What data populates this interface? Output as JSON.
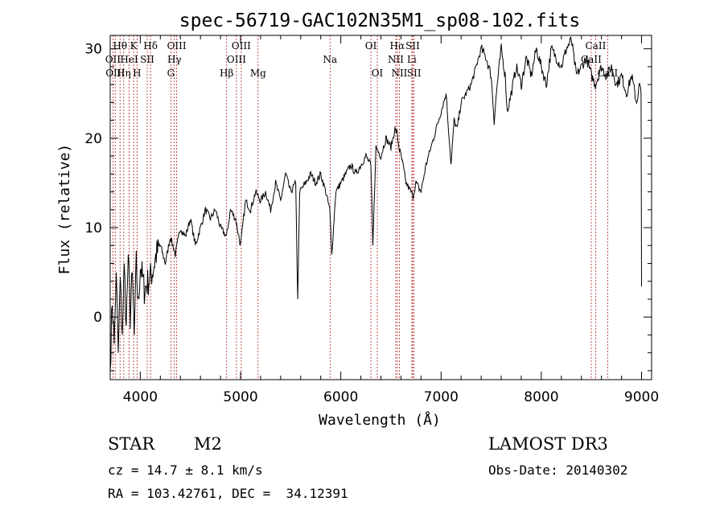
{
  "chart_data": {
    "type": "line",
    "title": "spec-56719-GAC102N35M1_sp08-102.fits",
    "xlabel": "Wavelength (Å)",
    "ylabel": "Flux (relative)",
    "xlim": [
      3700,
      9100
    ],
    "ylim": [
      -7,
      31.5
    ],
    "xticks": [
      4000,
      5000,
      6000,
      7000,
      8000,
      9000
    ],
    "yticks": [
      0,
      10,
      20,
      30
    ],
    "series": [
      {
        "name": "spectrum",
        "x": [
          3700,
          3720,
          3740,
          3760,
          3780,
          3800,
          3820,
          3840,
          3860,
          3880,
          3900,
          3920,
          3940,
          3960,
          3980,
          4000,
          4040,
          4080,
          4120,
          4160,
          4200,
          4250,
          4300,
          4350,
          4400,
          4450,
          4500,
          4550,
          4600,
          4650,
          4700,
          4750,
          4800,
          4860,
          4900,
          4950,
          5000,
          5050,
          5100,
          5150,
          5200,
          5250,
          5300,
          5350,
          5400,
          5450,
          5500,
          5550,
          5570,
          5590,
          5650,
          5700,
          5750,
          5800,
          5850,
          5890,
          5910,
          5950,
          6000,
          6050,
          6100,
          6150,
          6200,
          6250,
          6300,
          6320,
          6350,
          6400,
          6450,
          6500,
          6540,
          6563,
          6580,
          6620,
          6650,
          6700,
          6720,
          6750,
          6800,
          6850,
          6900,
          6950,
          7000,
          7050,
          7100,
          7130,
          7160,
          7200,
          7250,
          7300,
          7350,
          7400,
          7450,
          7500,
          7530,
          7560,
          7600,
          7640,
          7660,
          7700,
          7750,
          7800,
          7850,
          7900,
          7950,
          8000,
          8050,
          8100,
          8150,
          8200,
          8250,
          8300,
          8350,
          8400,
          8450,
          8500,
          8540,
          8600,
          8650,
          8700,
          8750,
          8800,
          8850,
          8900,
          8950,
          8980,
          8995,
          9000
        ],
        "y": [
          -6,
          2,
          -3,
          5,
          -4,
          4,
          -2,
          6,
          -1,
          7,
          0,
          5,
          -2,
          6,
          1,
          6,
          3,
          4,
          5,
          7,
          8,
          6,
          9,
          7,
          10,
          9,
          11,
          8,
          10,
          12,
          11,
          12,
          10,
          9,
          12,
          11,
          8,
          13,
          12,
          14,
          13,
          14,
          12,
          15,
          13,
          16,
          14,
          15,
          2,
          14,
          15,
          16,
          15,
          16,
          14,
          12,
          7,
          14,
          15,
          16,
          17,
          16,
          17,
          18,
          17,
          8,
          19,
          18,
          20,
          19,
          21,
          20.5,
          19,
          17,
          15,
          14,
          13.5,
          15,
          14,
          17,
          19,
          21,
          23,
          25,
          17,
          22,
          21,
          24,
          25,
          26,
          28,
          30,
          29,
          27,
          22,
          26,
          30,
          27,
          23,
          25,
          28,
          26,
          29,
          27,
          30,
          28,
          26,
          30,
          29,
          28,
          30,
          31,
          27,
          28,
          29,
          27,
          26,
          28,
          27,
          28,
          26,
          27,
          25,
          27,
          24,
          26,
          25,
          3
        ]
      }
    ],
    "line_labels": [
      {
        "label": "Hθ",
        "wave": 3798,
        "row": 1
      },
      {
        "label": "OII",
        "wave": 3727,
        "row": 2
      },
      {
        "label": "OIII",
        "wave": 3750,
        "row": 3
      },
      {
        "label": "K",
        "wave": 3934,
        "row": 1
      },
      {
        "label": "HeI",
        "wave": 3889,
        "row": 2
      },
      {
        "label": "Hη",
        "wave": 3835,
        "row": 3
      },
      {
        "label": "Hδ",
        "wave": 4102,
        "row": 1
      },
      {
        "label": "SII",
        "wave": 4069,
        "row": 2
      },
      {
        "label": "H",
        "wave": 3968,
        "row": 3
      },
      {
        "label": "OIII",
        "wave": 4363,
        "row": 1
      },
      {
        "label": "Hγ",
        "wave": 4340,
        "row": 2
      },
      {
        "label": "G",
        "wave": 4305,
        "row": 3
      },
      {
        "label": "OIII",
        "wave": 5007,
        "row": 1
      },
      {
        "label": "OIII",
        "wave": 4959,
        "row": 2
      },
      {
        "label": "Hβ",
        "wave": 4861,
        "row": 3
      },
      {
        "label": "Mg",
        "wave": 5175,
        "row": 3
      },
      {
        "label": "Na",
        "wave": 5893,
        "row": 2
      },
      {
        "label": "OI",
        "wave": 6300,
        "row": 1
      },
      {
        "label": "OI",
        "wave": 6364,
        "row": 3
      },
      {
        "label": "Hα",
        "wave": 6563,
        "row": 1
      },
      {
        "label": "NII",
        "wave": 6548,
        "row": 2
      },
      {
        "label": "NII",
        "wave": 6584,
        "row": 3
      },
      {
        "label": "SII",
        "wave": 6717,
        "row": 1
      },
      {
        "label": "Li",
        "wave": 6708,
        "row": 2
      },
      {
        "label": "SII",
        "wave": 6731,
        "row": 3
      },
      {
        "label": "CaII",
        "wave": 8542,
        "row": 1
      },
      {
        "label": "CaII",
        "wave": 8498,
        "row": 2
      },
      {
        "label": "CaII",
        "wave": 8662,
        "row": 3
      }
    ],
    "line_markers": [
      3727,
      3750,
      3798,
      3835,
      3889,
      3934,
      3968,
      4069,
      4102,
      4305,
      4340,
      4363,
      4861,
      4959,
      5007,
      5175,
      5893,
      6300,
      6364,
      6548,
      6563,
      6584,
      6708,
      6717,
      6731,
      8498,
      8542,
      8662
    ]
  },
  "info": {
    "class": "STAR",
    "subclass": "M2",
    "survey": "LAMOST DR3",
    "cz": "cz = 14.7 ± 8.1 km/s",
    "obs_date": "Obs-Date: 20140302",
    "coords": "RA = 103.42761, DEC =  34.12391"
  }
}
